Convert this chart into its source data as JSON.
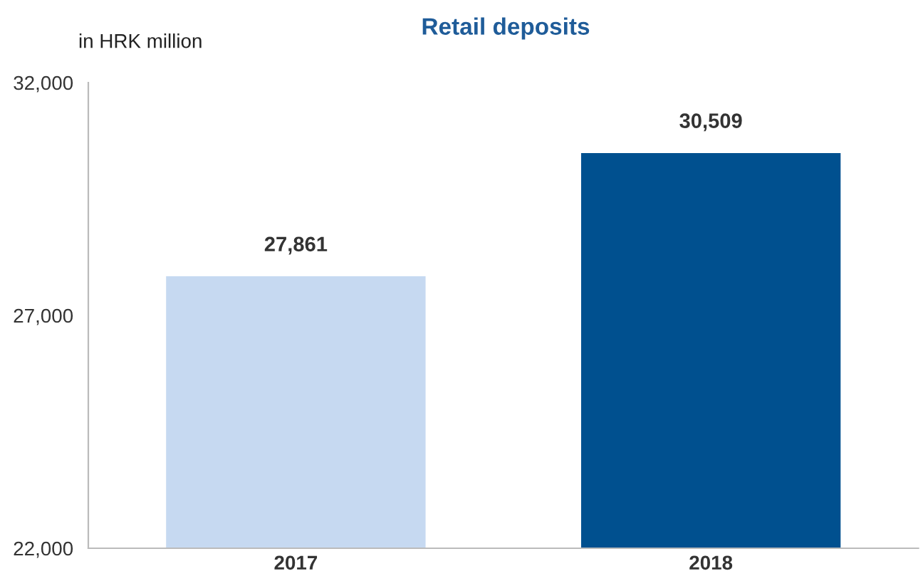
{
  "chart_data": {
    "type": "bar",
    "title": "Retail deposits",
    "ylabel": "in HRK million",
    "categories": [
      "2017",
      "2018"
    ],
    "values": [
      27861,
      30509
    ],
    "colors": [
      "#c6d9f1",
      "#00508f"
    ],
    "value_labels": [
      "27,861",
      "30,509"
    ],
    "ylim": [
      22000,
      32000
    ],
    "yticks": [
      {
        "value": 22000,
        "label": "22,000"
      },
      {
        "value": 27000,
        "label": "27,000"
      },
      {
        "value": 32000,
        "label": "32,000"
      }
    ],
    "grid": false,
    "legend": false
  }
}
